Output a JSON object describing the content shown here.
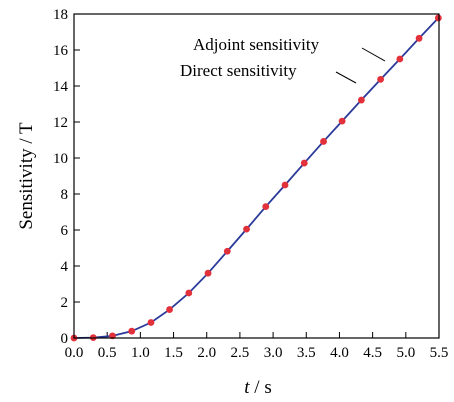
{
  "chart_data": {
    "type": "line",
    "xlabel_italic": "t",
    "xlabel_rest": " / s",
    "ylabel": "Sensitivity / T",
    "xlim": [
      0.0,
      5.5
    ],
    "ylim": [
      0,
      18
    ],
    "x_ticks": [
      "0.0",
      "0.5",
      "1.0",
      "1.5",
      "2.0",
      "2.5",
      "3.0",
      "3.5",
      "4.0",
      "4.5",
      "5.0",
      "5.5"
    ],
    "y_ticks": [
      "0",
      "2",
      "4",
      "6",
      "8",
      "10",
      "12",
      "14",
      "16",
      "18"
    ],
    "grid": false,
    "annotations": [
      "Adjoint sensitivity",
      "Direct sensitivity"
    ],
    "series": [
      {
        "name": "Direct sensitivity",
        "style": "line",
        "color": "#2b3a9a",
        "x": [
          0.0,
          0.29,
          0.58,
          0.87,
          1.16,
          1.44,
          1.73,
          2.02,
          2.31,
          2.6,
          2.89,
          3.18,
          3.47,
          3.76,
          4.04,
          4.33,
          4.62,
          4.91,
          5.2,
          5.49
        ],
        "y": [
          0.0,
          0.02,
          0.12,
          0.38,
          0.86,
          1.58,
          2.5,
          3.6,
          4.82,
          6.05,
          7.3,
          8.5,
          9.72,
          10.92,
          12.05,
          13.22,
          14.37,
          15.5,
          16.65,
          17.78
        ]
      },
      {
        "name": "Adjoint sensitivity",
        "style": "markers",
        "color": "#e2313a",
        "x": [
          0.0,
          0.29,
          0.58,
          0.87,
          1.16,
          1.44,
          1.73,
          2.02,
          2.31,
          2.6,
          2.89,
          3.18,
          3.47,
          3.76,
          4.04,
          4.33,
          4.62,
          4.91,
          5.2,
          5.49
        ],
        "y": [
          0.0,
          0.02,
          0.12,
          0.38,
          0.86,
          1.58,
          2.5,
          3.6,
          4.82,
          6.05,
          7.3,
          8.5,
          9.72,
          10.92,
          12.05,
          13.22,
          14.37,
          15.5,
          16.65,
          17.78
        ]
      }
    ]
  }
}
